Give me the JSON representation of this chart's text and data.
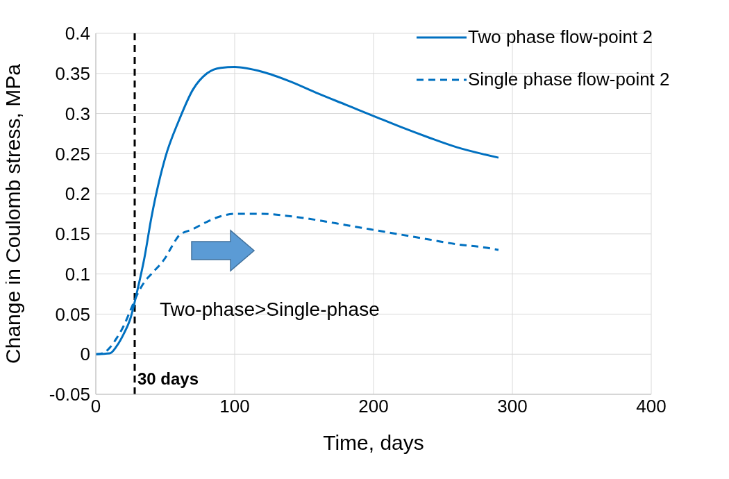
{
  "chart_data": {
    "type": "line",
    "xlabel": "Time, days",
    "ylabel": "Change in Coulomb stress, MPa",
    "xlim": [
      0,
      400
    ],
    "xticks": [
      0,
      100,
      200,
      300,
      400
    ],
    "ylim": [
      -0.05,
      0.4
    ],
    "yticks": [
      -0.05,
      0,
      0.05,
      0.1,
      0.15,
      0.2,
      0.25,
      0.3,
      0.35,
      0.4
    ],
    "grid": true,
    "legend": "top right",
    "marker": "none",
    "series": [
      {
        "name": "Two phase flow-point 2",
        "color": "#0070c0",
        "line_style": "solid",
        "x": [
          0,
          10,
          15,
          20,
          25,
          30,
          35,
          40,
          50,
          60,
          70,
          80,
          90,
          100,
          120,
          140,
          160,
          180,
          200,
          220,
          240,
          260,
          280,
          290
        ],
        "values": [
          0,
          0.001,
          0.01,
          0.025,
          0.045,
          0.08,
          0.12,
          0.17,
          0.245,
          0.292,
          0.33,
          0.35,
          0.357,
          0.358,
          0.352,
          0.34,
          0.325,
          0.311,
          0.297,
          0.283,
          0.27,
          0.258,
          0.249,
          0.245
        ]
      },
      {
        "name": "Single phase flow-point 2",
        "color": "#0070c0",
        "line_style": "dashed",
        "x": [
          0,
          5,
          10,
          15,
          20,
          25,
          30,
          35,
          40,
          50,
          55,
          60,
          70,
          80,
          90,
          100,
          120,
          140,
          160,
          180,
          200,
          220,
          240,
          260,
          280,
          290
        ],
        "values": [
          0,
          0.001,
          0.008,
          0.02,
          0.035,
          0.055,
          0.075,
          0.09,
          0.1,
          0.12,
          0.135,
          0.148,
          0.156,
          0.165,
          0.172,
          0.175,
          0.175,
          0.172,
          0.167,
          0.161,
          0.155,
          0.149,
          0.143,
          0.137,
          0.133,
          0.13
        ]
      }
    ],
    "ref_lines": [
      {
        "axis": "x",
        "value": 28,
        "label": "30 days",
        "color": "#000000",
        "line_style": "dashed"
      }
    ],
    "annotations": [
      "Two-phase>Single-phase"
    ]
  }
}
